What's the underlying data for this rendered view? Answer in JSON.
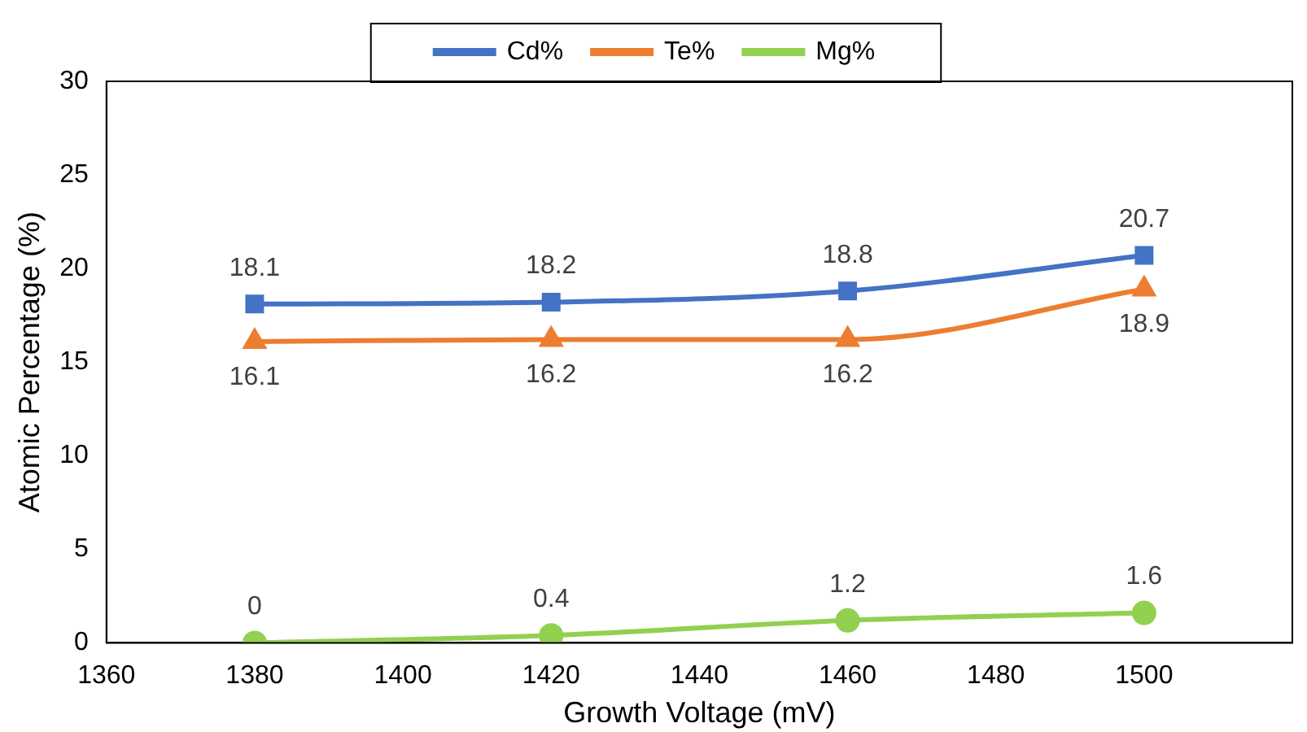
{
  "chart_data": {
    "type": "line",
    "xlabel": "Growth Voltage (mV)",
    "ylabel": "Atomic Percentage (%)",
    "x": [
      1380,
      1420,
      1460,
      1500
    ],
    "series": [
      {
        "name": "Cd%",
        "color": "#4472c4",
        "marker": "square",
        "values": [
          18.1,
          18.2,
          18.8,
          20.7
        ]
      },
      {
        "name": "Te%",
        "color": "#ed7d31",
        "marker": "triangle",
        "values": [
          16.1,
          16.2,
          16.2,
          18.9
        ]
      },
      {
        "name": "Mg%",
        "color": "#92d050",
        "marker": "circle",
        "values": [
          0,
          0.4,
          1.2,
          1.6
        ]
      }
    ],
    "xlim": [
      1360,
      1520
    ],
    "xticks": [
      1360,
      1380,
      1400,
      1420,
      1440,
      1460,
      1480,
      1500
    ],
    "ylim": [
      0,
      30
    ],
    "yticks": [
      0,
      5,
      10,
      15,
      20,
      25,
      30
    ],
    "grid": false,
    "legend": "top",
    "data_labels": true
  }
}
